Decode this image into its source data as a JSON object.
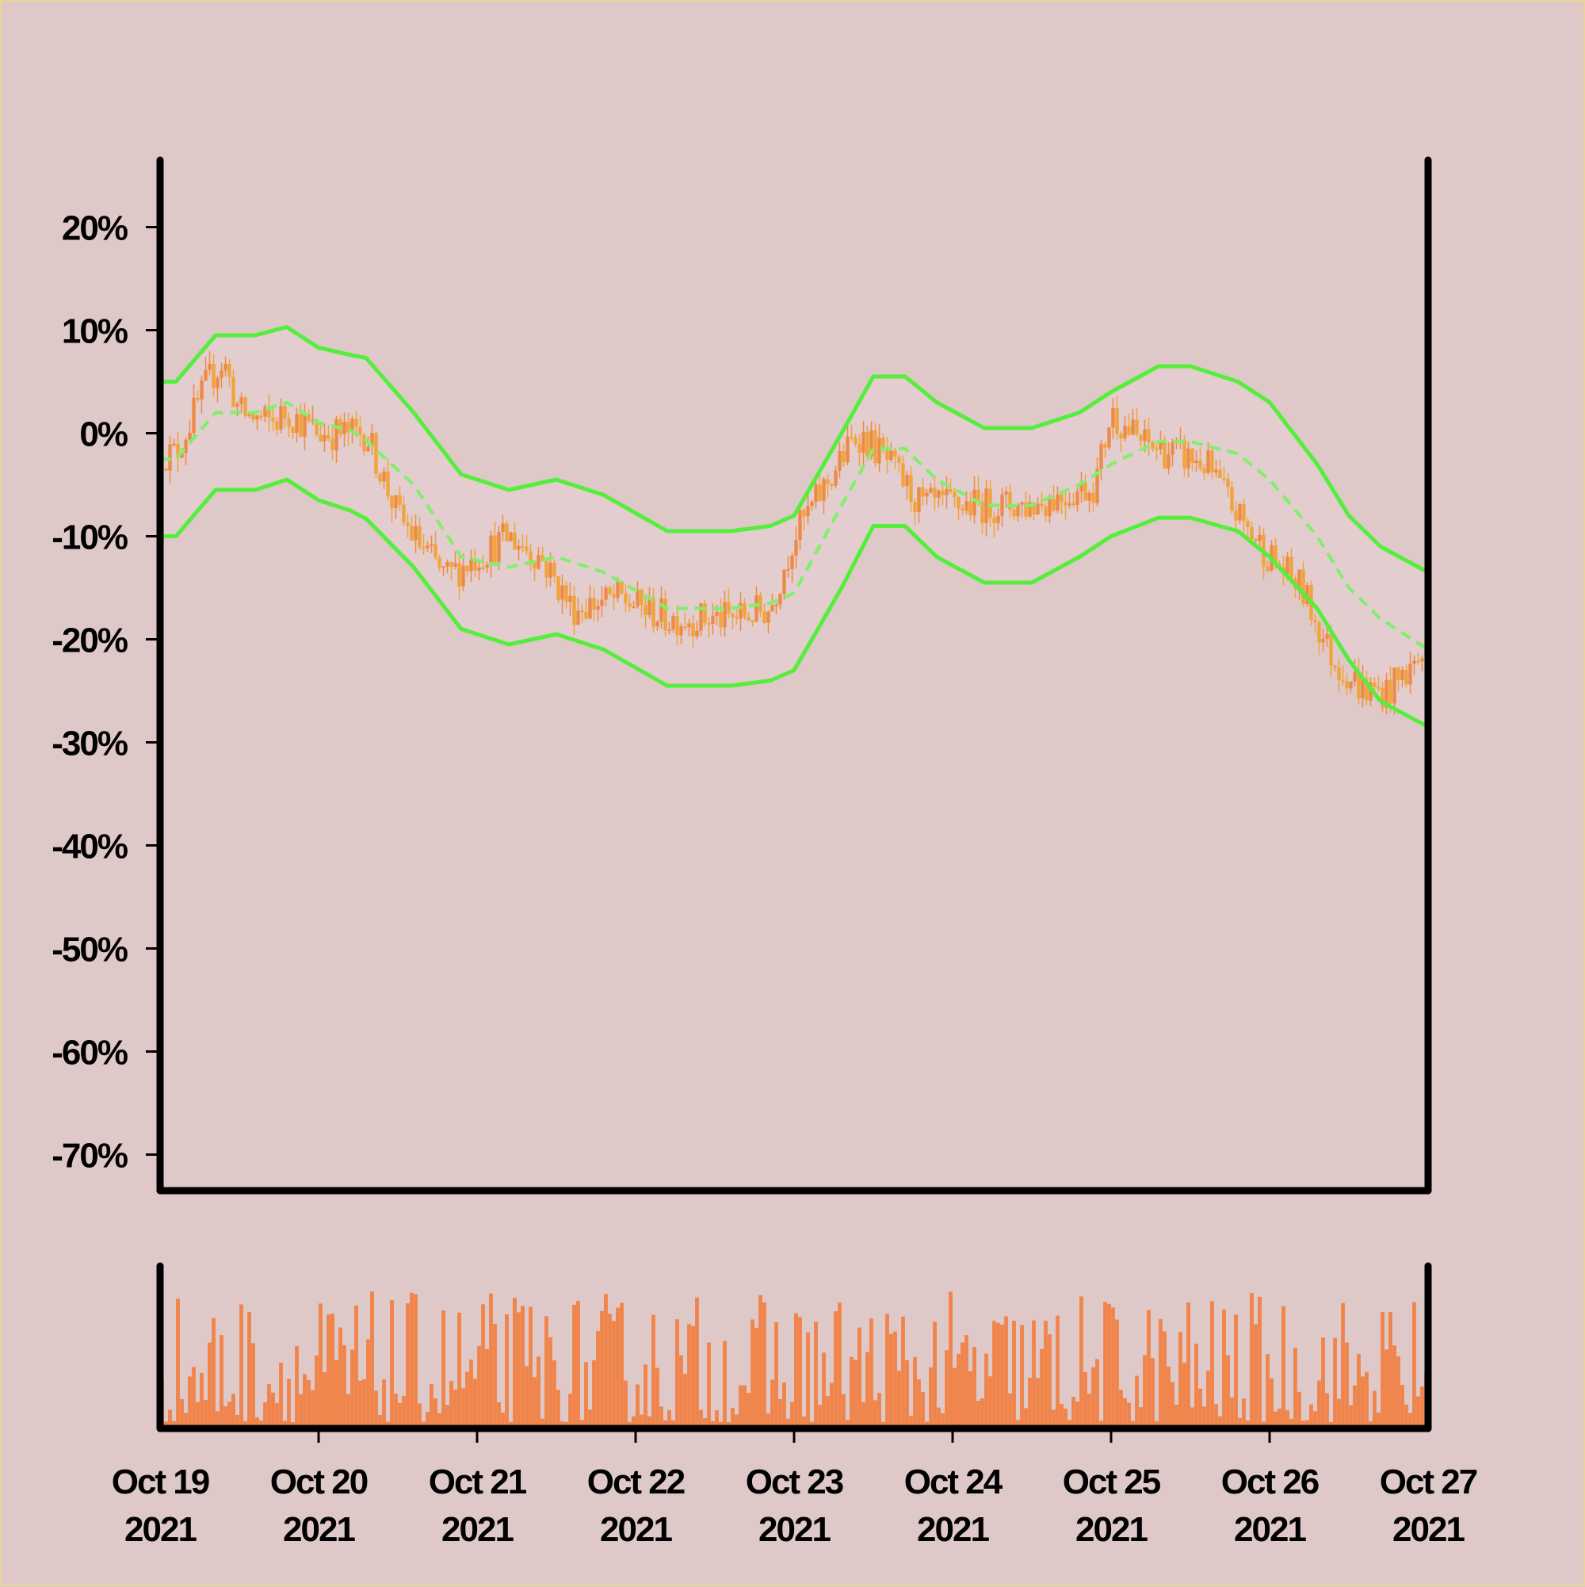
{
  "chart_data": {
    "type": "candlestick",
    "title": "",
    "xlabel": "",
    "ylabel": "",
    "x_range": [
      "2021-10-19",
      "2021-10-27"
    ],
    "x_ticks": [
      {
        "line1": "Oct 19",
        "line2": "2021"
      },
      {
        "line1": "Oct 20",
        "line2": "2021"
      },
      {
        "line1": "Oct 21",
        "line2": "2021"
      },
      {
        "line1": "Oct 22",
        "line2": "2021"
      },
      {
        "line1": "Oct 23",
        "line2": "2021"
      },
      {
        "line1": "Oct 24",
        "line2": "2021"
      },
      {
        "line1": "Oct 25",
        "line2": "2021"
      },
      {
        "line1": "Oct 26",
        "line2": "2021"
      },
      {
        "line1": "Oct 27",
        "line2": "2021"
      }
    ],
    "y_ticks": [
      "20%",
      "10%",
      "0%",
      "-10%",
      "-20%",
      "-30%",
      "-40%",
      "-50%",
      "-60%",
      "-70%"
    ],
    "y_tick_values": [
      20,
      10,
      0,
      -10,
      -20,
      -30,
      -40,
      -50,
      -60,
      -70
    ],
    "ylim": [
      -73.5,
      26.5
    ],
    "price_path_pct": [
      [
        0,
        -2
      ],
      [
        0.1,
        -2
      ],
      [
        0.3,
        5
      ],
      [
        0.4,
        7
      ],
      [
        0.5,
        2
      ],
      [
        0.7,
        1
      ],
      [
        0.8,
        2
      ],
      [
        1.0,
        0
      ],
      [
        1.3,
        0
      ],
      [
        1.5,
        -8
      ],
      [
        1.8,
        -14
      ],
      [
        2.0,
        -12
      ],
      [
        2.2,
        -10
      ],
      [
        2.4,
        -12
      ],
      [
        2.6,
        -17
      ],
      [
        2.9,
        -16
      ],
      [
        3.2,
        -18
      ],
      [
        3.6,
        -18
      ],
      [
        3.85,
        -17
      ],
      [
        4.0,
        -10
      ],
      [
        4.2,
        -5
      ],
      [
        4.4,
        0
      ],
      [
        4.55,
        -2
      ],
      [
        4.8,
        -7
      ],
      [
        5.1,
        -7
      ],
      [
        5.5,
        -7
      ],
      [
        5.9,
        -5
      ],
      [
        6.0,
        2
      ],
      [
        6.2,
        -1
      ],
      [
        6.4,
        -2
      ],
      [
        6.6,
        -3
      ],
      [
        6.8,
        -8
      ],
      [
        7.0,
        -12
      ],
      [
        7.2,
        -15
      ],
      [
        7.4,
        -22
      ],
      [
        7.6,
        -25
      ],
      [
        7.75,
        -25
      ],
      [
        8.0,
        -21
      ]
    ],
    "series": [
      {
        "kind": "bollinger-upper",
        "color": "#55ee3c",
        "width": 5,
        "values": [
          [
            0,
            5
          ],
          [
            0.1,
            5
          ],
          [
            0.35,
            9.5
          ],
          [
            0.6,
            9.5
          ],
          [
            0.8,
            10.3
          ],
          [
            1.0,
            8.3
          ],
          [
            1.2,
            7.6
          ],
          [
            1.3,
            7.3
          ],
          [
            1.6,
            2
          ],
          [
            1.9,
            -4
          ],
          [
            2.2,
            -5.5
          ],
          [
            2.5,
            -4.5
          ],
          [
            2.8,
            -6
          ],
          [
            3.2,
            -9.5
          ],
          [
            3.6,
            -9.5
          ],
          [
            3.85,
            -9
          ],
          [
            4.0,
            -8
          ],
          [
            4.3,
            0
          ],
          [
            4.5,
            5.5
          ],
          [
            4.7,
            5.5
          ],
          [
            4.9,
            3
          ],
          [
            5.2,
            0.5
          ],
          [
            5.5,
            0.5
          ],
          [
            5.8,
            2
          ],
          [
            6.0,
            4
          ],
          [
            6.3,
            6.5
          ],
          [
            6.5,
            6.5
          ],
          [
            6.8,
            5
          ],
          [
            7.0,
            3
          ],
          [
            7.3,
            -3
          ],
          [
            7.5,
            -8
          ],
          [
            7.7,
            -11
          ],
          [
            8.0,
            -13.5
          ]
        ]
      },
      {
        "kind": "moving-average",
        "color": "#7ff06a",
        "width": 4,
        "dashed": true,
        "values": [
          [
            0,
            -2.5
          ],
          [
            0.1,
            -2.5
          ],
          [
            0.35,
            2
          ],
          [
            0.6,
            2
          ],
          [
            0.8,
            3
          ],
          [
            1.0,
            1
          ],
          [
            1.2,
            0.3
          ],
          [
            1.3,
            -0.7
          ],
          [
            1.6,
            -5
          ],
          [
            1.9,
            -12
          ],
          [
            2.2,
            -13
          ],
          [
            2.5,
            -12
          ],
          [
            2.8,
            -13.5
          ],
          [
            3.2,
            -17
          ],
          [
            3.6,
            -17
          ],
          [
            3.85,
            -16.5
          ],
          [
            4.0,
            -15.5
          ],
          [
            4.3,
            -7
          ],
          [
            4.5,
            -1.5
          ],
          [
            4.7,
            -1.5
          ],
          [
            4.9,
            -4.5
          ],
          [
            5.2,
            -7
          ],
          [
            5.5,
            -7
          ],
          [
            5.8,
            -5
          ],
          [
            6.0,
            -3
          ],
          [
            6.3,
            -0.8
          ],
          [
            6.5,
            -0.8
          ],
          [
            6.8,
            -2
          ],
          [
            7.0,
            -4.5
          ],
          [
            7.3,
            -10
          ],
          [
            7.5,
            -15
          ],
          [
            7.7,
            -18
          ],
          [
            8.0,
            -21
          ]
        ]
      },
      {
        "kind": "bollinger-lower",
        "color": "#55ee3c",
        "width": 5,
        "values": [
          [
            0,
            -10
          ],
          [
            0.1,
            -10
          ],
          [
            0.35,
            -5.5
          ],
          [
            0.6,
            -5.5
          ],
          [
            0.8,
            -4.5
          ],
          [
            1.0,
            -6.5
          ],
          [
            1.2,
            -7.5
          ],
          [
            1.3,
            -8.3
          ],
          [
            1.6,
            -13
          ],
          [
            1.9,
            -19
          ],
          [
            2.2,
            -20.5
          ],
          [
            2.5,
            -19.5
          ],
          [
            2.8,
            -21
          ],
          [
            3.2,
            -24.5
          ],
          [
            3.6,
            -24.5
          ],
          [
            3.85,
            -24
          ],
          [
            4.0,
            -23
          ],
          [
            4.3,
            -15
          ],
          [
            4.5,
            -9
          ],
          [
            4.7,
            -9
          ],
          [
            4.9,
            -12
          ],
          [
            5.2,
            -14.5
          ],
          [
            5.5,
            -14.5
          ],
          [
            5.8,
            -12
          ],
          [
            6.0,
            -10
          ],
          [
            6.3,
            -8.2
          ],
          [
            6.5,
            -8.2
          ],
          [
            6.8,
            -9.5
          ],
          [
            7.0,
            -12
          ],
          [
            7.3,
            -17
          ],
          [
            7.5,
            -22
          ],
          [
            7.7,
            -26
          ],
          [
            8.0,
            -28.5
          ]
        ]
      }
    ],
    "band_fill_color": "#e3cdce",
    "candle_colors": [
      "#f0a43c",
      "#ee8a46"
    ],
    "volume": {
      "color": "#f0844a",
      "scale": "relative",
      "max": 1
    }
  }
}
